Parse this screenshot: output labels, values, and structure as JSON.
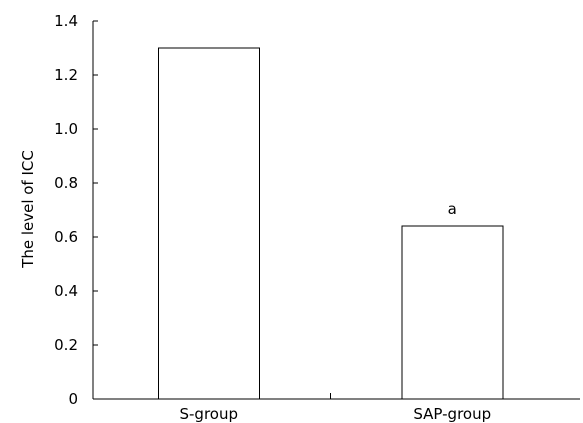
{
  "chart_data": {
    "type": "bar",
    "categories": [
      "S-group",
      "SAP-group"
    ],
    "values": [
      1.3,
      0.64
    ],
    "annotations": [
      "",
      "a"
    ],
    "title": "",
    "xlabel": "",
    "ylabel": "The level of ICC",
    "ylim": [
      0,
      1.4
    ],
    "yticks": [
      "0",
      "0.2",
      "0.4",
      "0.6",
      "0.8",
      "1.0",
      "1.2",
      "1.4"
    ],
    "grid": false,
    "legend": "none",
    "colors": {
      "bar_fill": "#ffffff",
      "bar_stroke": "#000000",
      "axis": "#000000"
    }
  }
}
